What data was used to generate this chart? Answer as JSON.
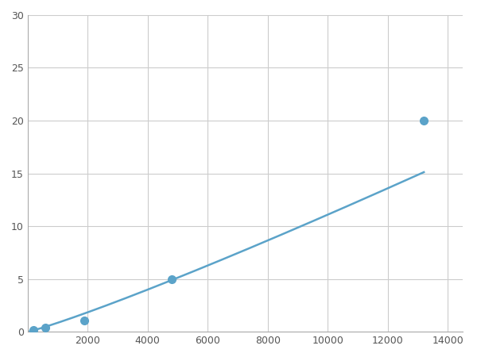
{
  "x_points": [
    200,
    600,
    1900,
    4800,
    13200
  ],
  "y_points": [
    0.2,
    0.4,
    1.1,
    5.0,
    20.0
  ],
  "line_color": "#5BA3C9",
  "marker_color": "#5BA3C9",
  "marker_size": 7,
  "line_width": 1.8,
  "xlim": [
    0,
    14500
  ],
  "ylim": [
    0,
    30
  ],
  "xticks": [
    2000,
    4000,
    6000,
    8000,
    10000,
    12000,
    14000
  ],
  "yticks": [
    0,
    5,
    10,
    15,
    20,
    25,
    30
  ],
  "grid_color": "#cccccc",
  "background_color": "#ffffff",
  "figsize": [
    6.0,
    4.5
  ],
  "dpi": 100
}
